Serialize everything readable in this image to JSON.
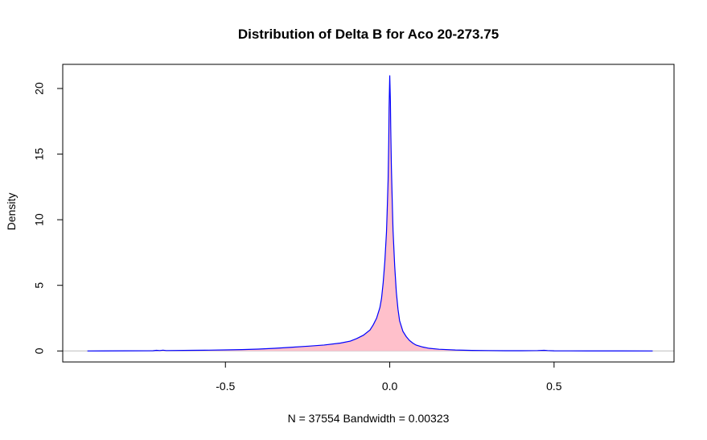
{
  "chart_data": {
    "type": "area",
    "title": "Distribution of Delta B for Aco 20-273.75",
    "xlabel": "N = 37554   Bandwidth = 0.00323",
    "ylabel": "Density",
    "xlim": [
      -0.995,
      0.865
    ],
    "ylim": [
      -0.84,
      21.84
    ],
    "x_ticks": [
      -0.5,
      0.0,
      0.5
    ],
    "x_tick_labels": [
      "-0.5",
      "0.0",
      "0.5"
    ],
    "y_ticks": [
      0,
      5,
      10,
      15,
      20
    ],
    "y_tick_labels": [
      "0",
      "5",
      "10",
      "15",
      "20"
    ],
    "grid": false,
    "legend": "none",
    "colors": {
      "fill": "#ffc0cb",
      "line": "#0000ff",
      "baseline": "#bebebe",
      "box": "#000000"
    },
    "series": [
      {
        "x": [
          -0.92,
          -0.8,
          -0.72,
          -0.71,
          -0.7,
          -0.69,
          -0.68,
          -0.6,
          -0.55,
          -0.5,
          -0.45,
          -0.4,
          -0.35,
          -0.3,
          -0.25,
          -0.2,
          -0.15,
          -0.12,
          -0.1,
          -0.08,
          -0.06,
          -0.05,
          -0.04,
          -0.03,
          -0.025,
          -0.02,
          -0.015,
          -0.01,
          -0.008,
          -0.005,
          -0.003,
          -0.002,
          0.0,
          0.002,
          0.003,
          0.005,
          0.008,
          0.01,
          0.015,
          0.02,
          0.025,
          0.03,
          0.04,
          0.05,
          0.06,
          0.07,
          0.08,
          0.1,
          0.12,
          0.15,
          0.2,
          0.25,
          0.3,
          0.35,
          0.4,
          0.45,
          0.47,
          0.48,
          0.5,
          0.55,
          0.6,
          0.7,
          0.8
        ],
        "y": [
          0.0,
          0.01,
          0.02,
          0.05,
          0.03,
          0.06,
          0.03,
          0.05,
          0.06,
          0.08,
          0.1,
          0.14,
          0.2,
          0.28,
          0.36,
          0.45,
          0.6,
          0.75,
          0.95,
          1.2,
          1.6,
          2.0,
          2.5,
          3.3,
          4.0,
          5.2,
          6.8,
          9.0,
          10.5,
          13.0,
          16.0,
          18.5,
          21.0,
          19.0,
          17.0,
          14.0,
          11.0,
          9.2,
          6.5,
          4.5,
          3.2,
          2.3,
          1.5,
          1.1,
          0.8,
          0.6,
          0.45,
          0.3,
          0.2,
          0.13,
          0.07,
          0.04,
          0.03,
          0.02,
          0.02,
          0.03,
          0.05,
          0.03,
          0.01,
          0.005,
          0.003,
          0.001,
          0.0
        ]
      }
    ]
  }
}
